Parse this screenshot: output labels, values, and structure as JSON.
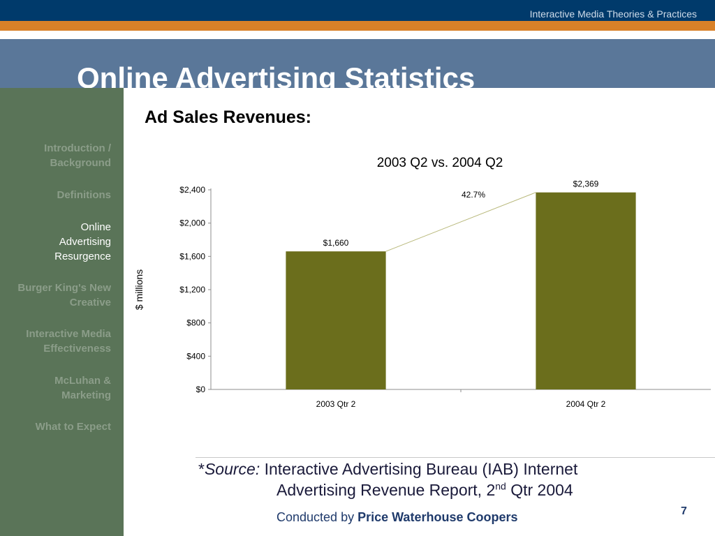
{
  "header": {
    "series_title": "Interactive Media Theories & Practices",
    "slide_title": "Online Advertising Statistics",
    "subtitle": "Ad Sales Revenues:",
    "colors": {
      "topbar": "#003a6b",
      "stripe": "#d98128",
      "title_band": "#5a7799",
      "sidebar": "#5a7458"
    }
  },
  "sidebar": {
    "items": [
      {
        "lines": [
          "Introduction /",
          "Background"
        ],
        "active": false
      },
      {
        "lines": [
          "Definitions"
        ],
        "active": false
      },
      {
        "lines": [
          "Online",
          "Advertising",
          "Resurgence"
        ],
        "active": true
      },
      {
        "lines": [
          "Burger King's New",
          "Creative"
        ],
        "active": false
      },
      {
        "lines": [
          "Interactive Media",
          "Effectiveness"
        ],
        "active": false
      },
      {
        "lines": [
          "McLuhan &",
          "Marketing"
        ],
        "active": false
      },
      {
        "lines": [
          "What to Expect"
        ],
        "active": false
      }
    ]
  },
  "chart_data": {
    "type": "bar",
    "title": "2003 Q2 vs. 2004 Q2",
    "ylabel": "$ millions",
    "xlabel": "",
    "categories": [
      "2003 Qtr 2",
      "2004 Qtr 2"
    ],
    "values": [
      1660,
      2369
    ],
    "data_labels": [
      "$1,660",
      "$2,369"
    ],
    "yticks": [
      0,
      400,
      800,
      1200,
      1600,
      2000,
      2400
    ],
    "ytick_labels": [
      "$0",
      "$400",
      "$800",
      "$1,200",
      "$1,600",
      "$2,000",
      "$2,400"
    ],
    "ylim": [
      0,
      2400
    ],
    "grid": false,
    "bar_color": "#6b6e1c",
    "annotation": {
      "text": "42.7%",
      "type": "growth-connector-line"
    }
  },
  "footer": {
    "source_prefix": "*",
    "source_label": "Source:",
    "source_text_1": " Interactive Advertising Bureau (IAB) Internet",
    "source_text_2a": "Advertising Revenue Report, 2",
    "source_sup": "nd",
    "source_text_2b": " Qtr 2004",
    "conducted_prefix": "Conducted by ",
    "conducted_company": "Price Waterhouse Coopers",
    "page_number": "7"
  }
}
